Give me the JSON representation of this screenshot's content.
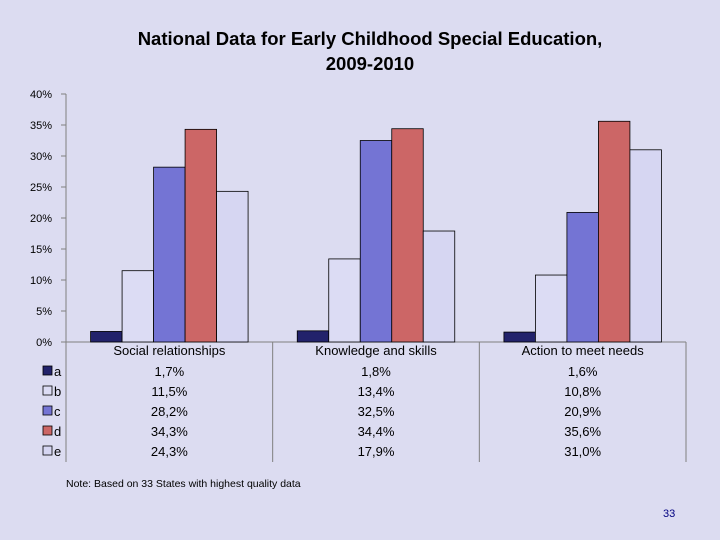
{
  "title_line1": "National Data for Early Childhood Special Education,",
  "title_line2": "2009-2010",
  "note": "Note:  Based on 33 States with highest quality data",
  "page_number": "33",
  "colors": {
    "background": "#dcdcf1",
    "a": "#22226b",
    "b": "#dcdcf4",
    "c": "#7474d4",
    "d": "#cc6666",
    "e": "#d6d6f2"
  },
  "chart_data": {
    "type": "bar",
    "title": "National Data for Early Childhood Special Education, 2009-2010",
    "categories": [
      "Social relationships",
      "Knowledge and skills",
      "Action to meet needs"
    ],
    "series": [
      {
        "name": "a",
        "values": [
          1.7,
          1.8,
          1.6
        ],
        "labels": [
          "1,7%",
          "1,8%",
          "1,6%"
        ]
      },
      {
        "name": "b",
        "values": [
          11.5,
          13.4,
          10.8
        ],
        "labels": [
          "11,5%",
          "13,4%",
          "10,8%"
        ]
      },
      {
        "name": "c",
        "values": [
          28.2,
          32.5,
          20.9
        ],
        "labels": [
          "28,2%",
          "32,5%",
          "20,9%"
        ]
      },
      {
        "name": "d",
        "values": [
          34.3,
          34.4,
          35.6
        ],
        "labels": [
          "34,3%",
          "34,4%",
          "35,6%"
        ]
      },
      {
        "name": "e",
        "values": [
          24.3,
          17.9,
          31.0
        ],
        "labels": [
          "24,3%",
          "17,9%",
          "31,0%"
        ]
      }
    ],
    "ylim": [
      0,
      40
    ],
    "yticks": [
      "0%",
      "5%",
      "10%",
      "15%",
      "20%",
      "25%",
      "30%",
      "35%",
      "40%"
    ],
    "grid": false,
    "legend": "data table"
  }
}
